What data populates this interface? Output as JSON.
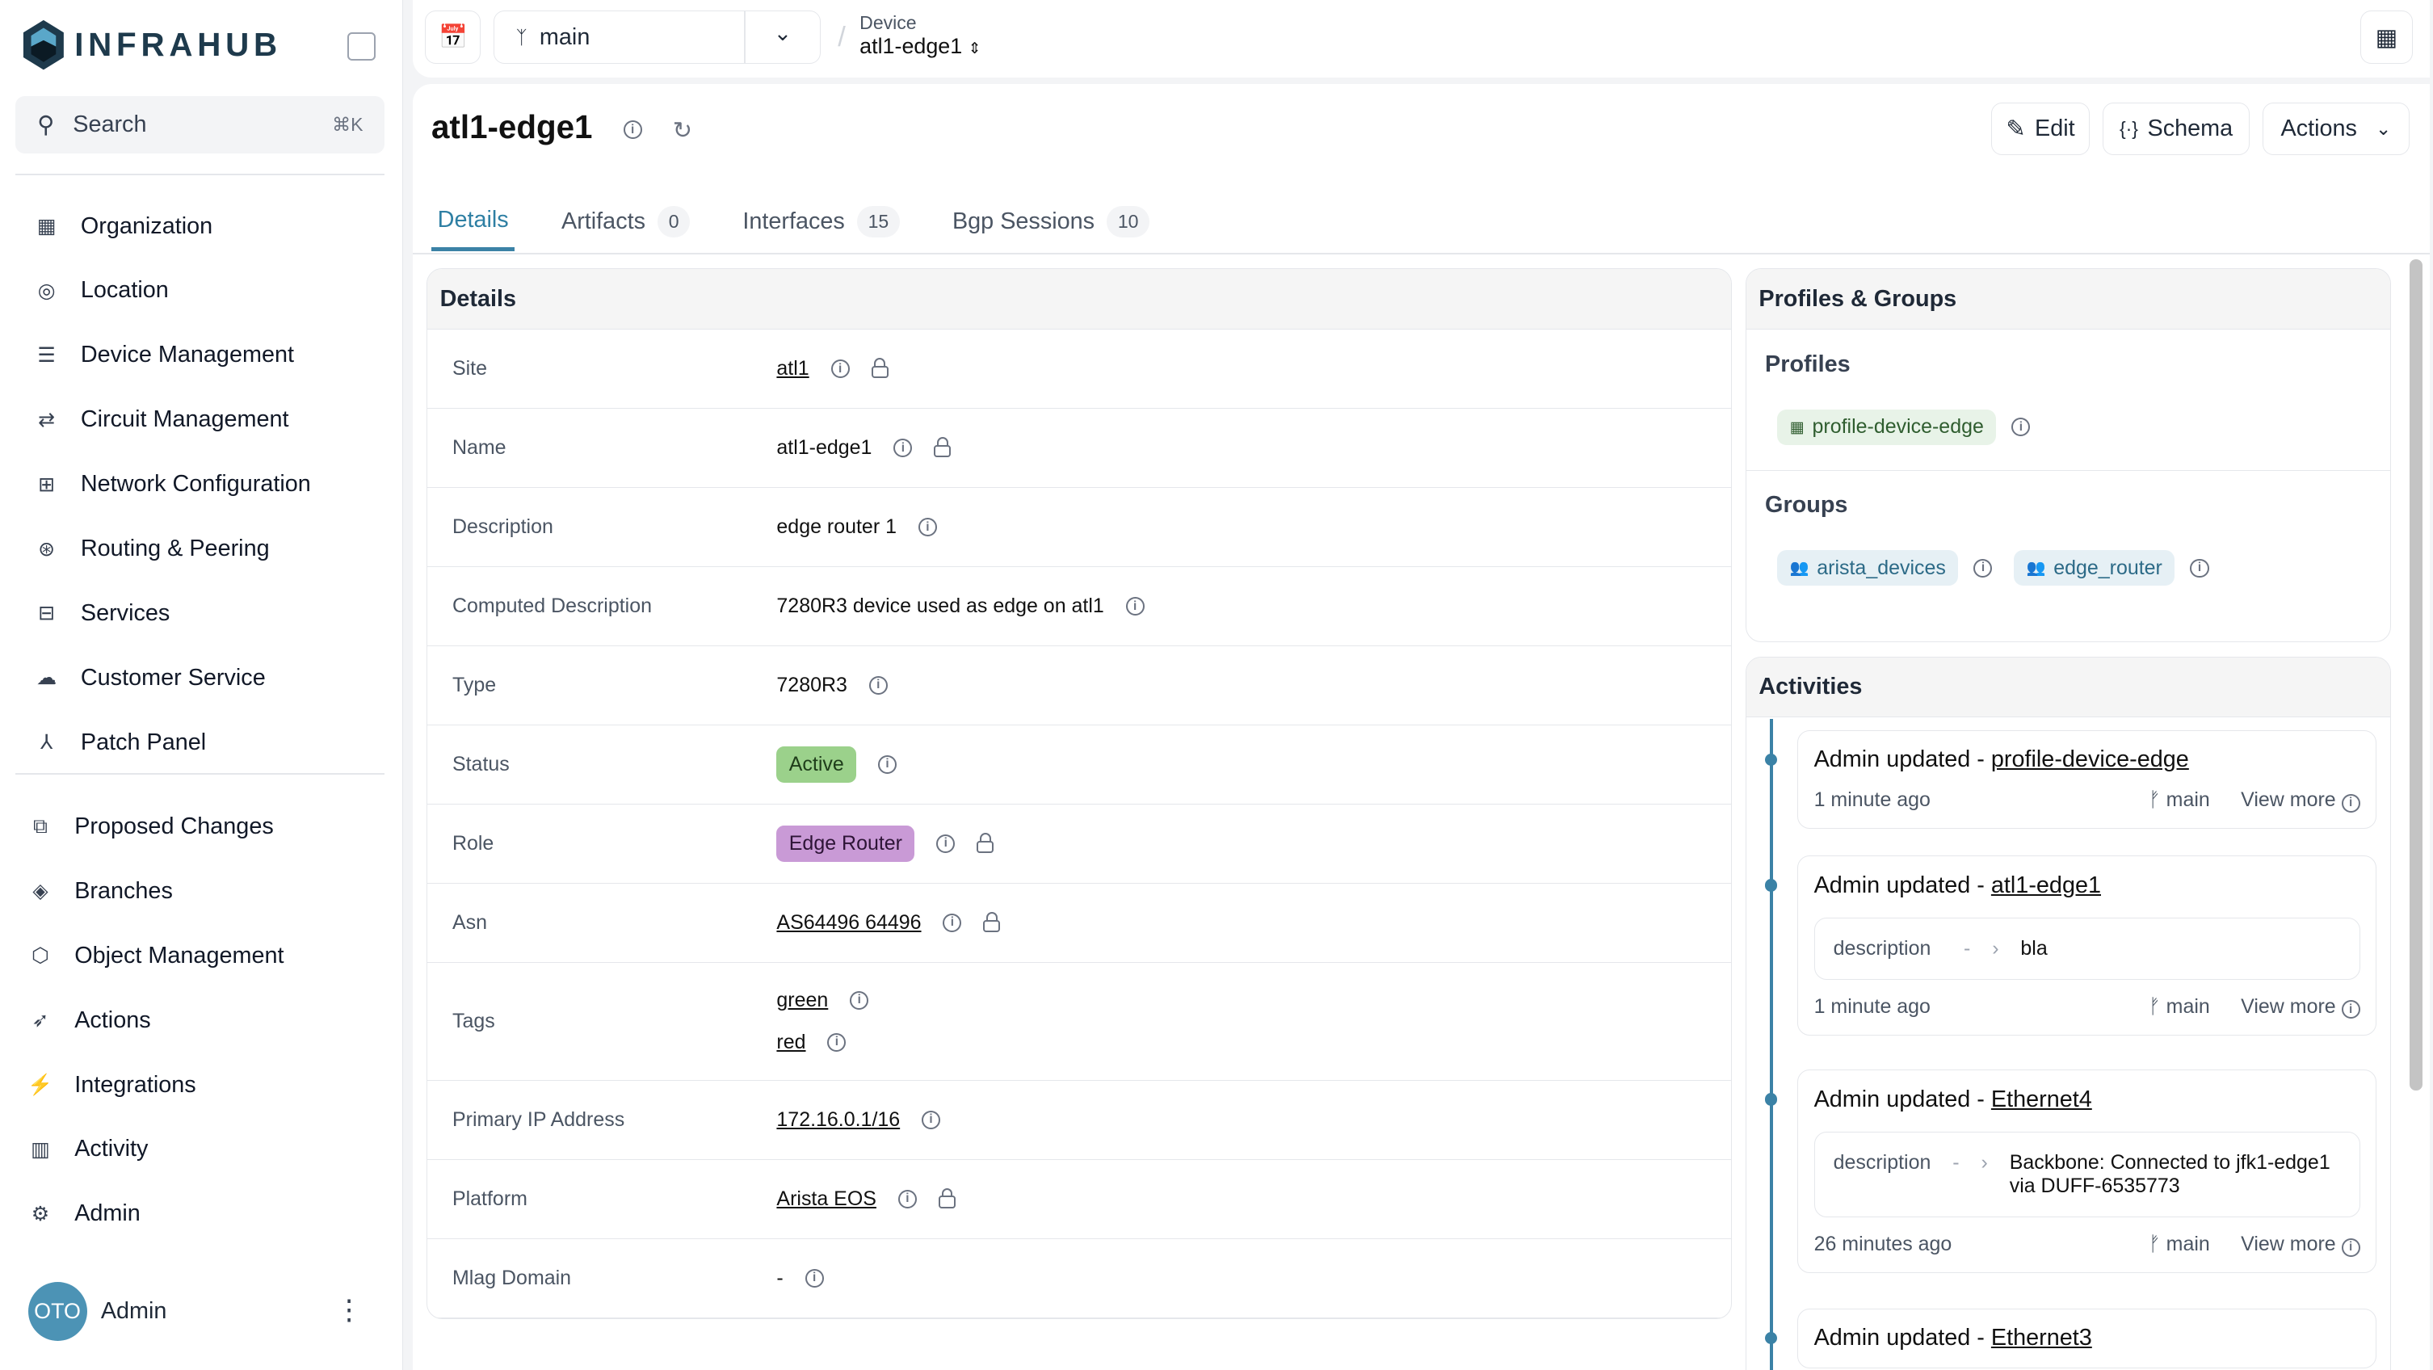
{
  "app": {
    "name": "INFRAHUB",
    "search_placeholder": "Search",
    "search_shortcut": "⌘K"
  },
  "sidebar": {
    "items": [
      {
        "label": "Organization",
        "icon": "building-icon"
      },
      {
        "label": "Location",
        "icon": "map-pin-icon"
      },
      {
        "label": "Device Management",
        "icon": "server-icon"
      },
      {
        "label": "Circuit Management",
        "icon": "circuit-icon"
      },
      {
        "label": "Network Configuration",
        "icon": "network-icon"
      },
      {
        "label": "Routing & Peering",
        "icon": "routing-icon"
      },
      {
        "label": "Services",
        "icon": "services-icon"
      },
      {
        "label": "Customer Service",
        "icon": "customer-icon"
      },
      {
        "label": "Patch Panel",
        "icon": "patch-icon"
      }
    ],
    "items2": [
      {
        "label": "Proposed Changes",
        "icon": "diff-icon"
      },
      {
        "label": "Branches",
        "icon": "layers-icon"
      },
      {
        "label": "Object Management",
        "icon": "cube-icon"
      },
      {
        "label": "Actions",
        "icon": "rocket-icon"
      },
      {
        "label": "Integrations",
        "icon": "plug-icon"
      },
      {
        "label": "Activity",
        "icon": "chart-icon"
      },
      {
        "label": "Admin",
        "icon": "gear-icon"
      }
    ],
    "user": {
      "initials": "OTO",
      "name": "Admin"
    }
  },
  "topbar": {
    "branch": "main",
    "breadcrumb_kind": "Device",
    "breadcrumb_object": "atl1-edge1"
  },
  "page": {
    "title": "atl1-edge1",
    "edit": "Edit",
    "schema": "Schema",
    "actions": "Actions",
    "tabs": [
      {
        "label": "Details",
        "count": null
      },
      {
        "label": "Artifacts",
        "count": "0"
      },
      {
        "label": "Interfaces",
        "count": "15"
      },
      {
        "label": "Bgp Sessions",
        "count": "10"
      }
    ]
  },
  "details": {
    "title": "Details",
    "rows": [
      {
        "label": "Site",
        "value": "atl1"
      },
      {
        "label": "Name",
        "value": "atl1-edge1"
      },
      {
        "label": "Description",
        "value": "edge router 1"
      },
      {
        "label": "Computed Description",
        "value": "7280R3 device used as edge on atl1"
      },
      {
        "label": "Type",
        "value": "7280R3"
      },
      {
        "label": "Status",
        "value": "Active"
      },
      {
        "label": "Role",
        "value": "Edge Router"
      },
      {
        "label": "Asn",
        "value": "AS64496 64496"
      },
      {
        "label": "Tags",
        "values": [
          "green",
          "red"
        ]
      },
      {
        "label": "Primary IP Address",
        "value": "172.16.0.1/16"
      },
      {
        "label": "Platform",
        "value": "Arista EOS"
      },
      {
        "label": "Mlag Domain",
        "value": "-"
      }
    ],
    "colors": {
      "status": "#9bd18b",
      "role": "#c99ad6"
    }
  },
  "profiles_groups": {
    "title": "Profiles & Groups",
    "profiles_label": "Profiles",
    "profiles": [
      "profile-device-edge"
    ],
    "groups_label": "Groups",
    "groups": [
      "arista_devices",
      "edge_router"
    ]
  },
  "activities": {
    "title": "Activities",
    "items": [
      {
        "actor": "Admin updated - ",
        "target": "profile-device-edge",
        "time": "1 minute ago",
        "branch": "main",
        "more": "View more"
      },
      {
        "actor": "Admin updated - ",
        "target": "atl1-edge1",
        "field": "description",
        "old": "-",
        "new": "bla",
        "time": "1 minute ago",
        "branch": "main",
        "more": "View more"
      },
      {
        "actor": "Admin updated - ",
        "target": "Ethernet4",
        "field": "description",
        "old": "-",
        "new": "Backbone: Connected to jfk1-edge1 via DUFF-6535773",
        "time": "26 minutes ago",
        "branch": "main",
        "more": "View more"
      },
      {
        "actor": "Admin updated - ",
        "target": "Ethernet3"
      }
    ]
  }
}
